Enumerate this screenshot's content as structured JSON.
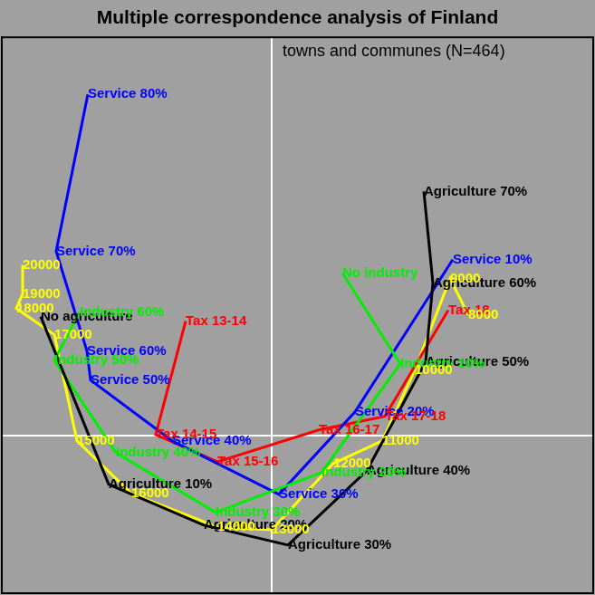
{
  "chart_data": {
    "type": "scatter",
    "title": "Multiple correspondence analysis of Finland",
    "subtitle": "towns and communes (N=464)",
    "xlim": [
      -2.98,
      3.55
    ],
    "ylim": [
      -1.74,
      4.39
    ],
    "xticks": [
      0
    ],
    "yticks": [
      0
    ],
    "grid": true,
    "tick_labels": false,
    "marker": "none",
    "series": [
      {
        "color": "#000000",
        "line_style": "solid",
        "x": [
          -2.55,
          -1.8,
          -0.75,
          0.18,
          1.05,
          1.7,
          1.78,
          1.68
        ],
        "y": [
          1.31,
          -0.54,
          -0.99,
          -1.21,
          -0.39,
          0.81,
          1.68,
          2.69
        ],
        "labels": [
          "No agriculture",
          "Agriculture 10%",
          "Agriculture 20%",
          "Agriculture 30%",
          "Agriculture 40%",
          "Agriculture 50%",
          "Agriculture 60%",
          "Agriculture 70%"
        ]
      },
      {
        "color": "#00ee00",
        "line_style": "solid",
        "x": [
          -2.12,
          -2.4,
          -1.72,
          -0.62,
          0.55,
          1.42,
          0.78
        ],
        "y": [
          1.36,
          0.83,
          -0.19,
          -0.85,
          -0.41,
          0.79,
          1.79
        ],
        "labels": [
          "Industry 60%",
          "Industry 50%",
          "Industry 40%",
          "Industry 30%",
          "Industry 20%",
          "Industry 10%",
          "No industry"
        ]
      },
      {
        "color": "#0000ff",
        "line_style": "solid",
        "x": [
          -2.03,
          -2.38,
          -2.04,
          -2.0,
          -1.1,
          0.08,
          0.92,
          2.0
        ],
        "y": [
          3.76,
          2.03,
          0.93,
          0.61,
          -0.06,
          -0.65,
          0.26,
          1.94
        ],
        "labels": [
          "Service 80%",
          "Service 70%",
          "Service 60%",
          "Service 50%",
          "Service 40%",
          "Service 30%",
          "Service 20%",
          "Service 10%"
        ]
      },
      {
        "color": "#ff0000",
        "line_style": "solid",
        "x": [
          -0.95,
          -1.28,
          -0.6,
          0.52,
          1.25,
          1.95
        ],
        "y": [
          1.26,
          0.01,
          -0.29,
          0.06,
          0.21,
          1.38
        ],
        "labels": [
          "Tax 13-14",
          "Tax 14-15",
          "Tax 15-16",
          "Tax 16-17",
          "Tax 17-18",
          "Tax 18"
        ]
      },
      {
        "color": "#ffff00",
        "line_style": "solid",
        "x": [
          -2.75,
          -2.75,
          -2.82,
          -2.4,
          -2.15,
          -1.55,
          -0.6,
          0.0,
          0.68,
          1.22,
          1.58,
          1.97,
          2.17
        ],
        "y": [
          1.88,
          1.56,
          1.4,
          1.11,
          -0.06,
          -0.64,
          -1.01,
          -1.04,
          -0.31,
          -0.06,
          0.72,
          1.73,
          1.33
        ],
        "labels": [
          "20000",
          "19000",
          "18000",
          "17000",
          "15000",
          "16000",
          "14000",
          "13000",
          "12000",
          "11000",
          "10000",
          "9000",
          "8000"
        ]
      }
    ]
  }
}
